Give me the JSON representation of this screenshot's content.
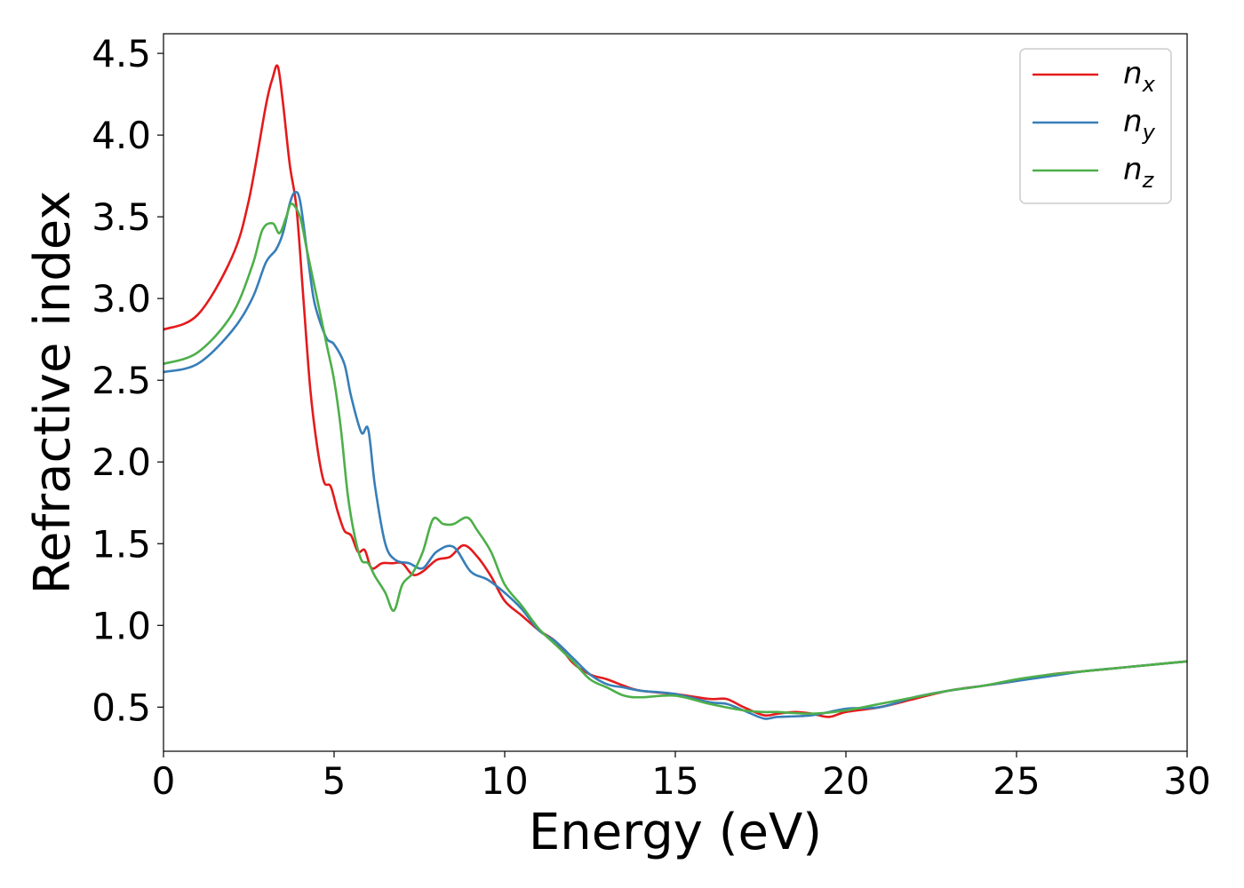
{
  "chart_data": {
    "type": "line",
    "xlabel": "Energy (eV)",
    "ylabel": "Refractive index",
    "xlim": [
      0,
      30
    ],
    "ylim": [
      0.23,
      4.62
    ],
    "xticks": [
      "0",
      "5",
      "10",
      "15",
      "20",
      "25",
      "30"
    ],
    "yticks": [
      "0.5",
      "1.0",
      "1.5",
      "2.0",
      "2.5",
      "3.0",
      "3.5",
      "4.0",
      "4.5"
    ],
    "grid": false,
    "legend_position": "top-right",
    "series": [
      {
        "name": "n",
        "subscript": "x",
        "color": "#e41a1c",
        "x": [
          0,
          1,
          2,
          2.5,
          3.0,
          3.2,
          3.35,
          3.5,
          3.7,
          3.9,
          4.1,
          4.3,
          4.5,
          4.7,
          4.9,
          5.1,
          5.3,
          5.5,
          5.7,
          5.9,
          6.1,
          6.4,
          6.7,
          7.0,
          7.3,
          7.6,
          8.0,
          8.4,
          8.8,
          9.2,
          9.6,
          10.0,
          10.5,
          11.0,
          11.5,
          12.0,
          12.5,
          13.0,
          13.5,
          14.0,
          15.0,
          16.0,
          16.5,
          17.0,
          17.6,
          18.0,
          18.5,
          19.0,
          19.5,
          20.0,
          21.0,
          22.0,
          23.0,
          24.0,
          25.0,
          26.0,
          27.0,
          28.0,
          29.0,
          30.0
        ],
        "y": [
          2.81,
          2.9,
          3.25,
          3.6,
          4.18,
          4.35,
          4.42,
          4.2,
          3.82,
          3.55,
          3.0,
          2.45,
          2.1,
          1.88,
          1.85,
          1.7,
          1.58,
          1.55,
          1.45,
          1.46,
          1.35,
          1.38,
          1.38,
          1.38,
          1.31,
          1.33,
          1.4,
          1.42,
          1.49,
          1.42,
          1.3,
          1.15,
          1.06,
          0.97,
          0.9,
          0.77,
          0.7,
          0.67,
          0.63,
          0.6,
          0.58,
          0.55,
          0.55,
          0.5,
          0.45,
          0.46,
          0.47,
          0.46,
          0.44,
          0.47,
          0.5,
          0.55,
          0.6,
          0.63,
          0.66,
          0.7,
          0.72,
          0.74,
          0.76,
          0.78
        ]
      },
      {
        "name": "n",
        "subscript": "y",
        "color": "#377eb8",
        "x": [
          0,
          1,
          2,
          2.6,
          3.0,
          3.3,
          3.5,
          3.7,
          3.85,
          4.0,
          4.2,
          4.4,
          4.6,
          4.8,
          5.0,
          5.3,
          5.5,
          5.8,
          6.0,
          6.2,
          6.5,
          6.8,
          7.2,
          7.6,
          8.0,
          8.5,
          9.0,
          9.5,
          10.0,
          10.5,
          11.0,
          11.5,
          12.0,
          12.5,
          13.0,
          13.5,
          14.0,
          15.0,
          16.0,
          16.5,
          17.0,
          17.6,
          18.0,
          19.0,
          20.0,
          21.0,
          22.0,
          23.0,
          24.0,
          25.0,
          26.0,
          27.0,
          28.0,
          29.0,
          30.0
        ],
        "y": [
          2.55,
          2.6,
          2.8,
          3.0,
          3.22,
          3.3,
          3.4,
          3.58,
          3.65,
          3.6,
          3.3,
          3.0,
          2.85,
          2.75,
          2.72,
          2.6,
          2.4,
          2.18,
          2.2,
          1.85,
          1.5,
          1.4,
          1.38,
          1.35,
          1.45,
          1.48,
          1.33,
          1.28,
          1.2,
          1.1,
          0.97,
          0.9,
          0.8,
          0.7,
          0.64,
          0.62,
          0.6,
          0.58,
          0.53,
          0.52,
          0.48,
          0.43,
          0.44,
          0.45,
          0.49,
          0.5,
          0.56,
          0.6,
          0.63,
          0.66,
          0.69,
          0.72,
          0.74,
          0.76,
          0.78
        ]
      },
      {
        "name": "n",
        "subscript": "z",
        "color": "#4daf4a",
        "x": [
          0,
          1,
          2,
          2.6,
          2.9,
          3.2,
          3.4,
          3.6,
          3.75,
          4.0,
          4.2,
          4.4,
          4.6,
          4.8,
          5.0,
          5.2,
          5.4,
          5.6,
          5.8,
          6.0,
          6.2,
          6.5,
          6.75,
          7.0,
          7.3,
          7.6,
          7.9,
          8.2,
          8.5,
          8.9,
          9.2,
          9.6,
          10.0,
          10.5,
          11.0,
          11.5,
          12.0,
          12.5,
          13.0,
          13.5,
          14.0,
          15.0,
          16.0,
          17.0,
          17.6,
          18.0,
          19.0,
          20.0,
          21.0,
          22.0,
          23.0,
          24.0,
          25.0,
          26.0,
          27.0,
          28.0,
          29.0,
          30.0
        ],
        "y": [
          2.6,
          2.67,
          2.9,
          3.2,
          3.42,
          3.46,
          3.4,
          3.5,
          3.58,
          3.5,
          3.3,
          3.1,
          2.9,
          2.7,
          2.5,
          2.2,
          1.8,
          1.55,
          1.4,
          1.38,
          1.3,
          1.2,
          1.09,
          1.25,
          1.32,
          1.45,
          1.65,
          1.62,
          1.62,
          1.66,
          1.58,
          1.45,
          1.25,
          1.12,
          0.98,
          0.88,
          0.78,
          0.67,
          0.62,
          0.57,
          0.56,
          0.57,
          0.52,
          0.48,
          0.47,
          0.47,
          0.46,
          0.48,
          0.52,
          0.56,
          0.6,
          0.63,
          0.67,
          0.7,
          0.72,
          0.74,
          0.76,
          0.78
        ]
      }
    ]
  }
}
